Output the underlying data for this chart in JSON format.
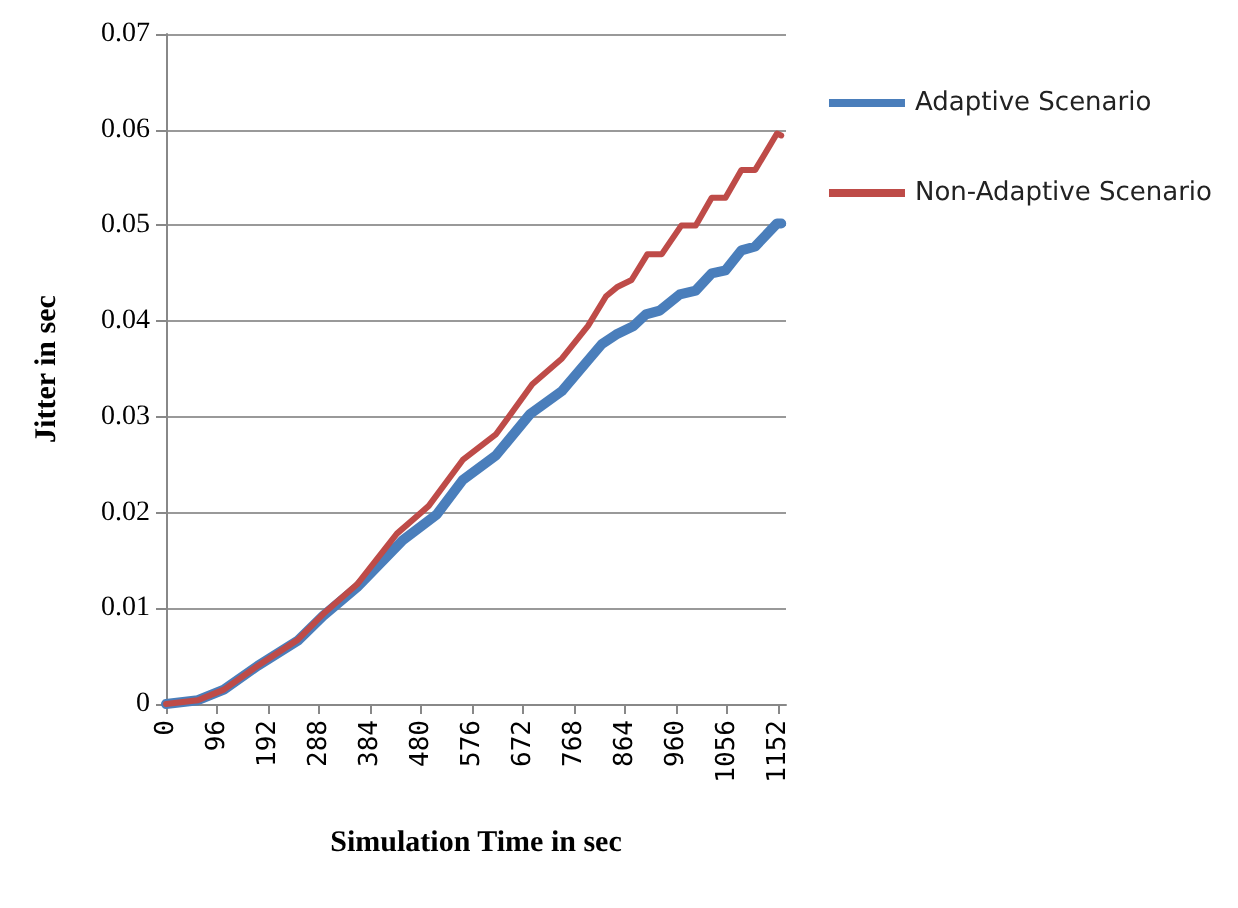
{
  "chart_data": {
    "type": "line",
    "xlabel": "Simulation Time in sec",
    "ylabel": "Jitter in sec",
    "xlim": [
      0,
      1168
    ],
    "xticks": [
      0,
      96,
      192,
      288,
      384,
      480,
      576,
      672,
      768,
      864,
      960,
      1056,
      1152
    ],
    "ylim": [
      0,
      0.07
    ],
    "yticks": [
      0,
      0.01,
      0.02,
      0.03,
      0.04,
      0.05,
      0.06,
      0.07
    ],
    "grid": "y",
    "legend": "right",
    "marker": "none",
    "line_style": "solid",
    "series": [
      {
        "name": "Adaptive Scenario",
        "color": "#4a7ebb",
        "x": [
          0,
          60,
          109,
          173,
          248,
          296,
          360,
          446,
          510,
          559,
          622,
          686,
          746,
          795,
          821,
          848,
          881,
          904,
          930,
          968,
          998,
          1028,
          1054,
          1084,
          1110,
          1151,
          1159
        ],
        "values": [
          0,
          0.0004,
          0.0015,
          0.004,
          0.0066,
          0.0092,
          0.0122,
          0.0171,
          0.0198,
          0.0234,
          0.026,
          0.0303,
          0.0327,
          0.0359,
          0.0376,
          0.0386,
          0.0395,
          0.0407,
          0.0411,
          0.0428,
          0.0432,
          0.045,
          0.0453,
          0.0474,
          0.0478,
          0.0502,
          0.0502
        ]
      },
      {
        "name": "Non-Adaptive Scenario",
        "color": "#be4b48",
        "x": [
          0,
          60,
          109,
          173,
          248,
          296,
          360,
          435,
          495,
          559,
          622,
          690,
          746,
          795,
          829,
          851,
          877,
          907,
          934,
          971,
          998,
          1028,
          1054,
          1084,
          1110,
          1151,
          1159
        ],
        "values": [
          0,
          0.0004,
          0.0015,
          0.004,
          0.0067,
          0.0094,
          0.0125,
          0.0178,
          0.0207,
          0.0255,
          0.0282,
          0.0334,
          0.0361,
          0.0395,
          0.0426,
          0.0436,
          0.0443,
          0.047,
          0.047,
          0.05,
          0.05,
          0.0529,
          0.0529,
          0.0558,
          0.0558,
          0.0596,
          0.0594
        ]
      }
    ]
  }
}
